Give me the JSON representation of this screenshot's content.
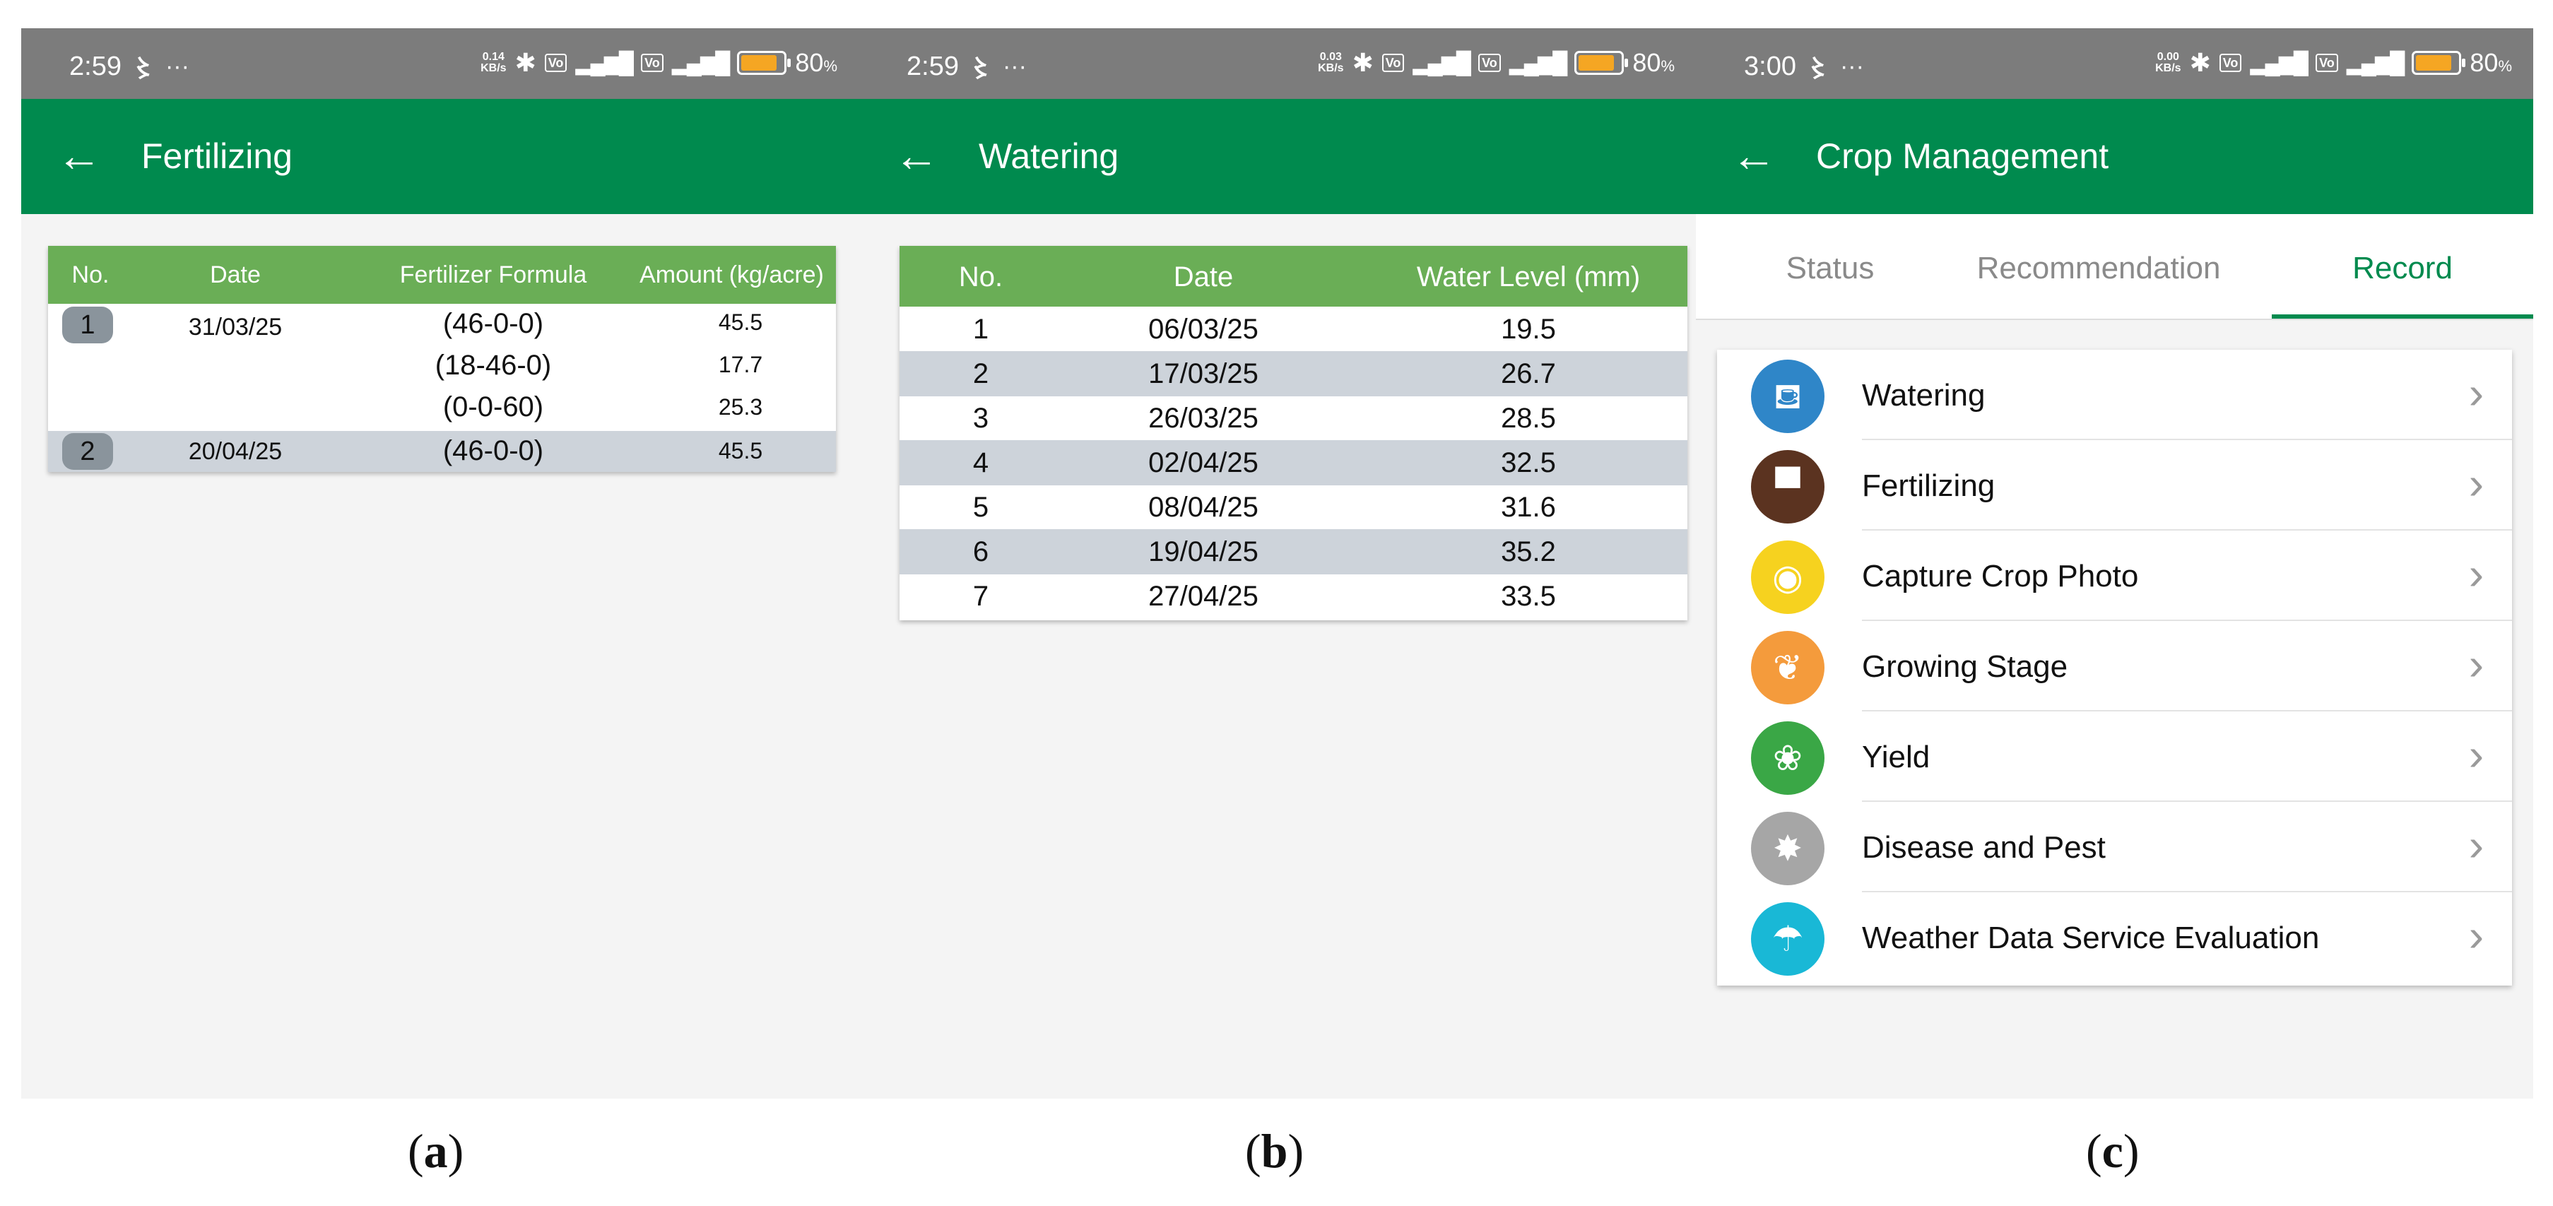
{
  "panels": {
    "a": {
      "status": {
        "time": "2:59",
        "speed_top": "0.14",
        "speed_unit": "KB/s",
        "battery": "80",
        "battery_unit": "%"
      },
      "title": "Fertilizing",
      "table": {
        "headers": [
          "No.",
          "Date",
          "Fertilizer Formula",
          "Amount (kg/acre)"
        ],
        "rows": [
          {
            "no": "1",
            "date": "31/03/25",
            "items": [
              {
                "formula": "(46-0-0)",
                "amount": "45.5"
              },
              {
                "formula": "(18-46-0)",
                "amount": "17.7"
              },
              {
                "formula": "(0-0-60)",
                "amount": "25.3"
              }
            ]
          },
          {
            "no": "2",
            "date": "20/04/25",
            "items": [
              {
                "formula": "(46-0-0)",
                "amount": "45.5"
              }
            ]
          }
        ]
      },
      "caption": "a"
    },
    "b": {
      "status": {
        "time": "2:59",
        "speed_top": "0.03",
        "speed_unit": "KB/s",
        "battery": "80",
        "battery_unit": "%"
      },
      "title": "Watering",
      "table": {
        "headers": [
          "No.",
          "Date",
          "Water Level (mm)"
        ],
        "rows": [
          {
            "no": "1",
            "date": "06/03/25",
            "level": "19.5"
          },
          {
            "no": "2",
            "date": "17/03/25",
            "level": "26.7"
          },
          {
            "no": "3",
            "date": "26/03/25",
            "level": "28.5"
          },
          {
            "no": "4",
            "date": "02/04/25",
            "level": "32.5"
          },
          {
            "no": "5",
            "date": "08/04/25",
            "level": "31.6"
          },
          {
            "no": "6",
            "date": "19/04/25",
            "level": "35.2"
          },
          {
            "no": "7",
            "date": "27/04/25",
            "level": "33.5"
          }
        ]
      },
      "caption": "b"
    },
    "c": {
      "status": {
        "time": "3:00",
        "speed_top": "0.00",
        "speed_unit": "KB/s",
        "battery": "80",
        "battery_unit": "%"
      },
      "title": "Crop Management",
      "tabs": [
        "Status",
        "Recommendation",
        "Record"
      ],
      "active_tab": "Record",
      "menu": [
        {
          "label": "Watering",
          "icon": "watering-can-icon",
          "color": "#2f86c8"
        },
        {
          "label": "Fertilizing",
          "icon": "fertilizer-bag-icon",
          "color": "#5b3320"
        },
        {
          "label": "Capture Crop Photo",
          "icon": "camera-icon",
          "color": "#f6d21f"
        },
        {
          "label": "Growing Stage",
          "icon": "plant-icon",
          "color": "#f49b3c"
        },
        {
          "label": "Yield",
          "icon": "hand-plant-icon",
          "color": "#3aa746"
        },
        {
          "label": "Disease and Pest",
          "icon": "pest-icon",
          "color": "#a6a6a6"
        },
        {
          "label": "Weather Data Service Evaluation",
          "icon": "rain-cloud-icon",
          "color": "#19b8d6"
        }
      ],
      "caption": "c"
    }
  },
  "colors": {
    "appbar": "#008a4e",
    "table_header": "#6aae56",
    "statusbar": "#7c7c7c",
    "row_alt": "#cdd3da"
  }
}
